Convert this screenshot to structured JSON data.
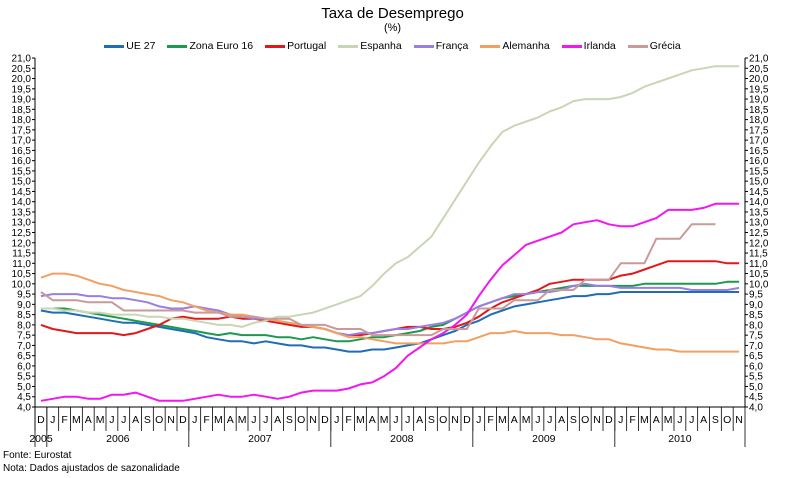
{
  "chart_data": {
    "type": "line",
    "title": "Taxa de Desemprego",
    "subtitle": "(%)",
    "ylim": [
      4.0,
      21.0
    ],
    "ytick_step": 0.5,
    "yticks_both_sides": true,
    "grid": false,
    "legend_position": "top",
    "x_month_labels": [
      "D",
      "J",
      "F",
      "M",
      "A",
      "M",
      "J",
      "J",
      "A",
      "S",
      "O",
      "N",
      "D",
      "J",
      "F",
      "M",
      "A",
      "M",
      "J",
      "J",
      "A",
      "S",
      "O",
      "N",
      "D",
      "J",
      "F",
      "M",
      "A",
      "M",
      "J",
      "J",
      "A",
      "S",
      "O",
      "N",
      "D",
      "J",
      "F",
      "M",
      "A",
      "M",
      "J",
      "J",
      "A",
      "S",
      "O",
      "N",
      "D",
      "J",
      "F",
      "M",
      "A",
      "M",
      "J",
      "J",
      "A",
      "S",
      "O",
      "N"
    ],
    "x_year_labels": [
      {
        "label": "2005",
        "start": 0,
        "end": 0
      },
      {
        "label": "2006",
        "start": 1,
        "end": 12
      },
      {
        "label": "2007",
        "start": 13,
        "end": 24
      },
      {
        "label": "2008",
        "start": 25,
        "end": 36
      },
      {
        "label": "2009",
        "start": 37,
        "end": 48
      },
      {
        "label": "2010",
        "start": 49,
        "end": 59
      }
    ],
    "series": [
      {
        "name": "UE 27",
        "color": "#1f6db4",
        "values": [
          8.7,
          8.6,
          8.6,
          8.5,
          8.4,
          8.3,
          8.2,
          8.1,
          8.1,
          8.0,
          7.9,
          7.8,
          7.7,
          7.6,
          7.4,
          7.3,
          7.2,
          7.2,
          7.1,
          7.2,
          7.1,
          7.0,
          7.0,
          6.9,
          6.9,
          6.8,
          6.7,
          6.7,
          6.8,
          6.8,
          6.9,
          7.0,
          7.1,
          7.3,
          7.5,
          7.7,
          8.0,
          8.2,
          8.5,
          8.7,
          8.9,
          9.0,
          9.1,
          9.2,
          9.3,
          9.4,
          9.4,
          9.5,
          9.5,
          9.6,
          9.6,
          9.6,
          9.6,
          9.6,
          9.6,
          9.6,
          9.6,
          9.6,
          9.6,
          9.6
        ]
      },
      {
        "name": "Zona Euro 16",
        "color": "#1b9a4e",
        "values": [
          8.8,
          8.8,
          8.8,
          8.7,
          8.6,
          8.5,
          8.4,
          8.3,
          8.2,
          8.1,
          8.0,
          7.9,
          7.8,
          7.7,
          7.6,
          7.5,
          7.6,
          7.5,
          7.5,
          7.5,
          7.4,
          7.4,
          7.3,
          7.4,
          7.3,
          7.2,
          7.2,
          7.3,
          7.4,
          7.4,
          7.5,
          7.6,
          7.7,
          7.9,
          8.0,
          8.3,
          8.6,
          8.9,
          9.1,
          9.3,
          9.4,
          9.5,
          9.6,
          9.7,
          9.8,
          9.9,
          9.9,
          9.9,
          9.9,
          9.9,
          9.9,
          10.0,
          10.0,
          10.0,
          10.0,
          10.0,
          10.0,
          10.0,
          10.1,
          10.1
        ]
      },
      {
        "name": "Portugal",
        "color": "#e0191b",
        "values": [
          8.0,
          7.8,
          7.7,
          7.6,
          7.6,
          7.6,
          7.6,
          7.5,
          7.6,
          7.8,
          8.0,
          8.3,
          8.4,
          8.3,
          8.3,
          8.3,
          8.4,
          8.3,
          8.3,
          8.2,
          8.1,
          8.0,
          7.9,
          7.9,
          7.8,
          7.6,
          7.5,
          7.5,
          7.6,
          7.7,
          7.8,
          7.9,
          7.9,
          7.8,
          7.8,
          7.9,
          8.1,
          8.4,
          8.8,
          9.1,
          9.3,
          9.5,
          9.7,
          10.0,
          10.1,
          10.2,
          10.2,
          10.2,
          10.2,
          10.4,
          10.5,
          10.7,
          10.9,
          11.1,
          11.1,
          11.1,
          11.1,
          11.1,
          11.0,
          11.0
        ]
      },
      {
        "name": "Espanha",
        "color": "#c9d6b3",
        "values": [
          8.8,
          8.8,
          8.7,
          8.7,
          8.6,
          8.6,
          8.5,
          8.5,
          8.5,
          8.4,
          8.4,
          8.3,
          8.3,
          8.2,
          8.1,
          8.0,
          8.0,
          7.9,
          8.1,
          8.2,
          8.4,
          8.4,
          8.5,
          8.6,
          8.8,
          9.0,
          9.2,
          9.4,
          9.9,
          10.5,
          11.0,
          11.3,
          11.8,
          12.3,
          13.2,
          14.1,
          15.0,
          15.9,
          16.7,
          17.4,
          17.7,
          17.9,
          18.1,
          18.4,
          18.6,
          18.9,
          19.0,
          19.0,
          19.0,
          19.1,
          19.3,
          19.6,
          19.8,
          20.0,
          20.2,
          20.4,
          20.5,
          20.6,
          20.6,
          20.6
        ]
      },
      {
        "name": "França",
        "color": "#9a7ee6",
        "values": [
          9.4,
          9.5,
          9.5,
          9.5,
          9.4,
          9.4,
          9.3,
          9.3,
          9.2,
          9.1,
          8.9,
          8.8,
          8.8,
          8.9,
          8.8,
          8.7,
          8.5,
          8.4,
          8.3,
          8.3,
          8.2,
          8.1,
          8.0,
          7.9,
          7.8,
          7.6,
          7.5,
          7.6,
          7.6,
          7.7,
          7.8,
          7.8,
          7.9,
          8.0,
          8.1,
          8.3,
          8.6,
          8.9,
          9.1,
          9.3,
          9.5,
          9.5,
          9.6,
          9.6,
          9.7,
          9.9,
          10.0,
          9.9,
          9.9,
          9.8,
          9.8,
          9.8,
          9.8,
          9.8,
          9.8,
          9.7,
          9.7,
          9.7,
          9.7,
          9.8
        ]
      },
      {
        "name": "Alemanha",
        "color": "#f2a062",
        "values": [
          10.3,
          10.5,
          10.5,
          10.4,
          10.2,
          10.0,
          9.9,
          9.7,
          9.6,
          9.5,
          9.4,
          9.2,
          9.1,
          8.9,
          8.7,
          8.6,
          8.5,
          8.5,
          8.4,
          8.3,
          8.2,
          8.1,
          8.0,
          7.9,
          7.8,
          7.6,
          7.4,
          7.4,
          7.3,
          7.2,
          7.1,
          7.1,
          7.1,
          7.1,
          7.1,
          7.2,
          7.2,
          7.4,
          7.6,
          7.6,
          7.7,
          7.6,
          7.6,
          7.6,
          7.5,
          7.5,
          7.4,
          7.3,
          7.3,
          7.1,
          7.0,
          6.9,
          6.8,
          6.8,
          6.7,
          6.7,
          6.7,
          6.7,
          6.7,
          6.7
        ]
      },
      {
        "name": "Irlanda",
        "color": "#f216ef",
        "values": [
          4.3,
          4.4,
          4.5,
          4.5,
          4.4,
          4.4,
          4.6,
          4.6,
          4.7,
          4.5,
          4.3,
          4.3,
          4.3,
          4.4,
          4.5,
          4.6,
          4.5,
          4.5,
          4.6,
          4.5,
          4.4,
          4.5,
          4.7,
          4.8,
          4.8,
          4.8,
          4.9,
          5.1,
          5.2,
          5.5,
          5.9,
          6.5,
          6.9,
          7.3,
          7.6,
          8.0,
          8.5,
          9.4,
          10.2,
          10.9,
          11.4,
          11.9,
          12.1,
          12.3,
          12.5,
          12.9,
          13.0,
          13.1,
          12.9,
          12.8,
          12.8,
          13.0,
          13.2,
          13.6,
          13.6,
          13.6,
          13.7,
          13.9,
          13.9,
          13.9
        ]
      },
      {
        "name": "Grécia",
        "color": "#c99a98",
        "values": [
          9.6,
          9.2,
          9.2,
          9.2,
          9.1,
          9.1,
          9.1,
          8.7,
          8.7,
          8.7,
          8.7,
          8.7,
          8.7,
          8.6,
          8.6,
          8.6,
          8.4,
          8.4,
          8.4,
          8.3,
          8.3,
          8.3,
          8.0,
          8.0,
          8.0,
          7.8,
          7.8,
          7.8,
          7.5,
          7.5,
          7.5,
          7.5,
          7.5,
          7.5,
          7.8,
          7.8,
          7.8,
          8.8,
          8.8,
          8.8,
          9.2,
          9.2,
          9.2,
          9.7,
          9.7,
          9.7,
          10.2,
          10.2,
          10.2,
          11.0,
          11.0,
          11.0,
          12.2,
          12.2,
          12.2,
          12.9,
          12.9,
          12.9,
          null,
          null
        ]
      }
    ]
  },
  "footer": {
    "source": "Fonte: Eurostat",
    "note": "Nota: Dados ajustados de sazonalidade"
  }
}
